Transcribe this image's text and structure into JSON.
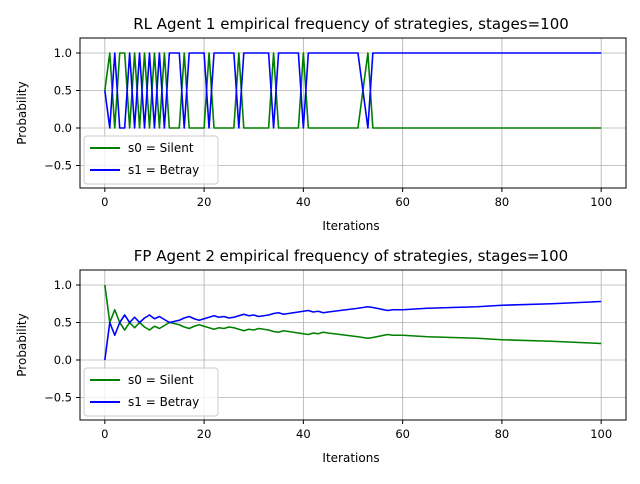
{
  "chart_data": [
    {
      "type": "line",
      "title": "RL Agent 1 empirical frequency of strategies, stages=100",
      "xlabel": "Iterations",
      "ylabel": "Probability",
      "xlim": [
        -5,
        105
      ],
      "ylim": [
        -0.8,
        1.2
      ],
      "xticks": [
        0,
        20,
        40,
        60,
        80,
        100
      ],
      "yticks": [
        -0.5,
        0.0,
        0.5,
        1.0
      ],
      "xtick_labels": [
        "0",
        "20",
        "40",
        "60",
        "80",
        "100"
      ],
      "ytick_labels": [
        "−0.5",
        "0.0",
        "0.5",
        "1.0"
      ],
      "grid": true,
      "legend_position": "lower-left",
      "series": [
        {
          "name": "s0 = Silent",
          "color": "#008000",
          "points": [
            [
              0,
              0.5
            ],
            [
              1,
              1
            ],
            [
              2,
              0
            ],
            [
              3,
              1
            ],
            [
              4,
              1
            ],
            [
              5,
              0
            ],
            [
              6,
              1
            ],
            [
              7,
              0
            ],
            [
              8,
              1
            ],
            [
              9,
              0
            ],
            [
              10,
              1
            ],
            [
              11,
              0
            ],
            [
              12,
              1
            ],
            [
              13,
              0
            ],
            [
              15,
              0
            ],
            [
              16,
              1
            ],
            [
              17,
              0
            ],
            [
              20,
              0
            ],
            [
              21,
              1
            ],
            [
              22,
              0
            ],
            [
              26,
              0
            ],
            [
              27,
              1
            ],
            [
              28,
              0
            ],
            [
              33,
              0
            ],
            [
              34,
              1
            ],
            [
              35,
              0
            ],
            [
              39,
              0
            ],
            [
              40,
              1
            ],
            [
              41,
              0
            ],
            [
              51,
              0
            ],
            [
              53,
              1
            ],
            [
              54,
              0
            ],
            [
              100,
              0
            ]
          ]
        },
        {
          "name": "s1 = Betray",
          "color": "#0000ff",
          "points": [
            [
              0,
              0.5
            ],
            [
              1,
              0
            ],
            [
              2,
              1
            ],
            [
              3,
              0
            ],
            [
              4,
              0
            ],
            [
              5,
              1
            ],
            [
              6,
              0
            ],
            [
              7,
              1
            ],
            [
              8,
              0
            ],
            [
              9,
              1
            ],
            [
              10,
              0
            ],
            [
              11,
              1
            ],
            [
              12,
              0
            ],
            [
              13,
              1
            ],
            [
              15,
              1
            ],
            [
              16,
              0
            ],
            [
              17,
              1
            ],
            [
              20,
              1
            ],
            [
              21,
              0
            ],
            [
              22,
              1
            ],
            [
              26,
              1
            ],
            [
              27,
              0
            ],
            [
              28,
              1
            ],
            [
              33,
              1
            ],
            [
              34,
              0
            ],
            [
              35,
              1
            ],
            [
              39,
              1
            ],
            [
              40,
              0
            ],
            [
              41,
              1
            ],
            [
              51,
              1
            ],
            [
              53,
              0
            ],
            [
              54,
              1
            ],
            [
              100,
              1
            ]
          ]
        }
      ]
    },
    {
      "type": "line",
      "title": "FP Agent 2 empirical frequency of strategies, stages=100",
      "xlabel": "Iterations",
      "ylabel": "Probability",
      "xlim": [
        -5,
        105
      ],
      "ylim": [
        -0.8,
        1.2
      ],
      "xticks": [
        0,
        20,
        40,
        60,
        80,
        100
      ],
      "yticks": [
        -0.5,
        0.0,
        0.5,
        1.0
      ],
      "xtick_labels": [
        "0",
        "20",
        "40",
        "60",
        "80",
        "100"
      ],
      "ytick_labels": [
        "−0.5",
        "0.0",
        "0.5",
        "1.0"
      ],
      "grid": true,
      "legend_position": "lower-left",
      "series": [
        {
          "name": "s0 = Silent",
          "color": "#008000",
          "points": [
            [
              0,
              1.0
            ],
            [
              1,
              0.5
            ],
            [
              2,
              0.67
            ],
            [
              3,
              0.5
            ],
            [
              4,
              0.4
            ],
            [
              5,
              0.5
            ],
            [
              6,
              0.43
            ],
            [
              7,
              0.5
            ],
            [
              8,
              0.44
            ],
            [
              9,
              0.4
            ],
            [
              10,
              0.45
            ],
            [
              11,
              0.42
            ],
            [
              12,
              0.46
            ],
            [
              13,
              0.5
            ],
            [
              15,
              0.47
            ],
            [
              16,
              0.44
            ],
            [
              17,
              0.42
            ],
            [
              18,
              0.45
            ],
            [
              19,
              0.47
            ],
            [
              20,
              0.45
            ],
            [
              21,
              0.43
            ],
            [
              22,
              0.41
            ],
            [
              23,
              0.43
            ],
            [
              24,
              0.42
            ],
            [
              25,
              0.44
            ],
            [
              26,
              0.43
            ],
            [
              27,
              0.41
            ],
            [
              28,
              0.39
            ],
            [
              29,
              0.41
            ],
            [
              30,
              0.4
            ],
            [
              31,
              0.42
            ],
            [
              32,
              0.41
            ],
            [
              33,
              0.4
            ],
            [
              34,
              0.38
            ],
            [
              35,
              0.37
            ],
            [
              36,
              0.39
            ],
            [
              37,
              0.38
            ],
            [
              38,
              0.37
            ],
            [
              39,
              0.36
            ],
            [
              40,
              0.35
            ],
            [
              41,
              0.34
            ],
            [
              42,
              0.36
            ],
            [
              43,
              0.35
            ],
            [
              44,
              0.37
            ],
            [
              45,
              0.36
            ],
            [
              51,
              0.31
            ],
            [
              53,
              0.29
            ],
            [
              54,
              0.3
            ],
            [
              57,
              0.34
            ],
            [
              58,
              0.33
            ],
            [
              60,
              0.33
            ],
            [
              65,
              0.31
            ],
            [
              70,
              0.3
            ],
            [
              75,
              0.29
            ],
            [
              80,
              0.27
            ],
            [
              90,
              0.25
            ],
            [
              100,
              0.22
            ]
          ]
        },
        {
          "name": "s1 = Betray",
          "color": "#0000ff",
          "points": [
            [
              0,
              0.0
            ],
            [
              1,
              0.5
            ],
            [
              2,
              0.33
            ],
            [
              3,
              0.5
            ],
            [
              4,
              0.6
            ],
            [
              5,
              0.5
            ],
            [
              6,
              0.57
            ],
            [
              7,
              0.5
            ],
            [
              8,
              0.56
            ],
            [
              9,
              0.6
            ],
            [
              10,
              0.55
            ],
            [
              11,
              0.58
            ],
            [
              12,
              0.54
            ],
            [
              13,
              0.5
            ],
            [
              15,
              0.53
            ],
            [
              16,
              0.56
            ],
            [
              17,
              0.58
            ],
            [
              18,
              0.55
            ],
            [
              19,
              0.53
            ],
            [
              20,
              0.55
            ],
            [
              21,
              0.57
            ],
            [
              22,
              0.59
            ],
            [
              23,
              0.57
            ],
            [
              24,
              0.58
            ],
            [
              25,
              0.56
            ],
            [
              26,
              0.57
            ],
            [
              27,
              0.59
            ],
            [
              28,
              0.61
            ],
            [
              29,
              0.59
            ],
            [
              30,
              0.6
            ],
            [
              31,
              0.58
            ],
            [
              32,
              0.59
            ],
            [
              33,
              0.6
            ],
            [
              34,
              0.62
            ],
            [
              35,
              0.63
            ],
            [
              36,
              0.61
            ],
            [
              37,
              0.62
            ],
            [
              38,
              0.63
            ],
            [
              39,
              0.64
            ],
            [
              40,
              0.65
            ],
            [
              41,
              0.66
            ],
            [
              42,
              0.64
            ],
            [
              43,
              0.65
            ],
            [
              44,
              0.63
            ],
            [
              45,
              0.64
            ],
            [
              51,
              0.69
            ],
            [
              53,
              0.71
            ],
            [
              54,
              0.7
            ],
            [
              57,
              0.66
            ],
            [
              58,
              0.67
            ],
            [
              60,
              0.67
            ],
            [
              65,
              0.69
            ],
            [
              70,
              0.7
            ],
            [
              75,
              0.71
            ],
            [
              80,
              0.73
            ],
            [
              90,
              0.75
            ],
            [
              100,
              0.78
            ]
          ]
        }
      ]
    }
  ]
}
